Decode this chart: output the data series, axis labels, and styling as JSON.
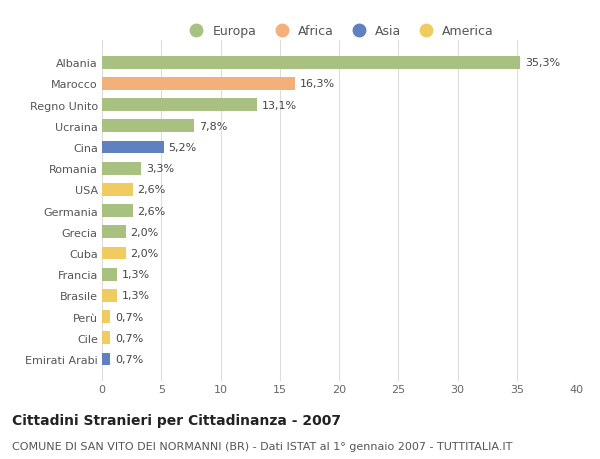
{
  "categories": [
    "Albania",
    "Marocco",
    "Regno Unito",
    "Ucraina",
    "Cina",
    "Romania",
    "USA",
    "Germania",
    "Grecia",
    "Cuba",
    "Francia",
    "Brasile",
    "Perù",
    "Cile",
    "Emirati Arabi"
  ],
  "values": [
    35.3,
    16.3,
    13.1,
    7.8,
    5.2,
    3.3,
    2.6,
    2.6,
    2.0,
    2.0,
    1.3,
    1.3,
    0.7,
    0.7,
    0.7
  ],
  "labels": [
    "35,3%",
    "16,3%",
    "13,1%",
    "7,8%",
    "5,2%",
    "3,3%",
    "2,6%",
    "2,6%",
    "2,0%",
    "2,0%",
    "1,3%",
    "1,3%",
    "0,7%",
    "0,7%",
    "0,7%"
  ],
  "continents": [
    "Europa",
    "Africa",
    "Europa",
    "Europa",
    "Asia",
    "Europa",
    "America",
    "Europa",
    "Europa",
    "America",
    "Europa",
    "America",
    "America",
    "America",
    "Asia"
  ],
  "colors": {
    "Europa": "#a8c080",
    "Africa": "#f4b07a",
    "Asia": "#6080bf",
    "America": "#f0cc60"
  },
  "title": "Cittadini Stranieri per Cittadinanza - 2007",
  "subtitle": "COMUNE DI SAN VITO DEI NORMANNI (BR) - Dati ISTAT al 1° gennaio 2007 - TUTTITALIA.IT",
  "xlim": [
    0,
    40
  ],
  "xticks": [
    0,
    5,
    10,
    15,
    20,
    25,
    30,
    35,
    40
  ],
  "background_color": "#ffffff",
  "grid_color": "#dddddd",
  "bar_height": 0.6,
  "title_fontsize": 10,
  "subtitle_fontsize": 8,
  "tick_fontsize": 8,
  "label_fontsize": 8,
  "legend_fontsize": 9
}
